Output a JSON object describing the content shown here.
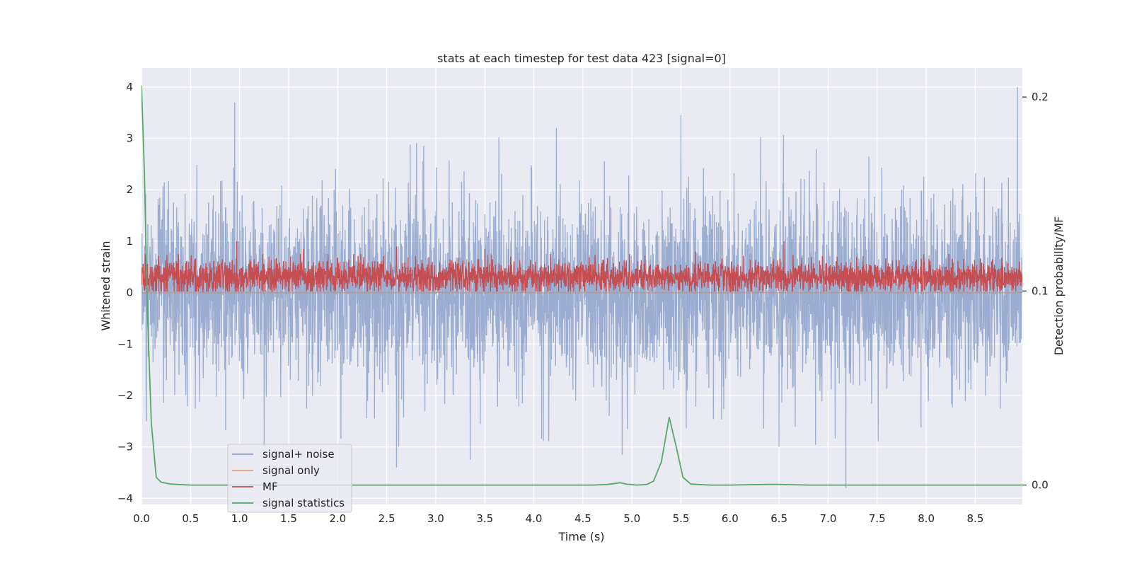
{
  "chart_data": {
    "type": "line",
    "title": "stats at each timestep for test data 423 [signal=0]",
    "xlabel": "Time (s)",
    "ylabel": "Whitened strain",
    "y2label": "Detection probability/MF",
    "xlim": [
      0,
      8.98
    ],
    "ylim": [
      -4.12,
      4.37
    ],
    "y2lim": [
      -0.01,
      0.215
    ],
    "xticks": [
      0.0,
      0.5,
      1.0,
      1.5,
      2.0,
      2.5,
      3.0,
      3.5,
      4.0,
      4.5,
      5.0,
      5.5,
      6.0,
      6.5,
      7.0,
      7.5,
      8.0,
      8.5
    ],
    "xtick_labels": [
      "0.0",
      "0.5",
      "1.0",
      "1.5",
      "2.0",
      "2.5",
      "3.0",
      "3.5",
      "4.0",
      "4.5",
      "5.0",
      "5.5",
      "6.0",
      "6.5",
      "7.0",
      "7.5",
      "8.0",
      "8.5"
    ],
    "yticks": [
      -4,
      -3,
      -2,
      -1,
      0,
      1,
      2,
      3,
      4
    ],
    "ytick_labels": [
      "−4",
      "−3",
      "−2",
      "−1",
      "0",
      "1",
      "2",
      "3",
      "4"
    ],
    "y2ticks": [
      0.0,
      0.1,
      0.2
    ],
    "y2tick_labels": [
      "0.0",
      "0.1",
      "0.2"
    ],
    "grid": true,
    "legend_position": "lower-left",
    "background": "#eaeaf2",
    "series": [
      {
        "name": "signal+ noise",
        "axis": "left",
        "color": "#4c72b0",
        "alpha": 0.5,
        "description_values": "dense whitened noise, roughly within -3.8 to 4.0, mostly between -2 and 2",
        "noise_std": 0.9,
        "spikes": [
          [
            0.95,
            3.7
          ],
          [
            4.1,
            0.0
          ],
          [
            7.18,
            -3.8
          ],
          [
            8.93,
            4.0
          ],
          [
            2.6,
            -3.4
          ],
          [
            3.35,
            -3.25
          ],
          [
            4.9,
            -3.15
          ],
          [
            1.25,
            -3.0
          ],
          [
            0.05,
            -2.5
          ],
          [
            5.5,
            3.45
          ]
        ]
      },
      {
        "name": "signal only",
        "axis": "left",
        "color": "#dd8452",
        "values_note": "zero everywhere (no signal)",
        "x": [
          0,
          8.98
        ],
        "y": [
          0,
          0
        ]
      },
      {
        "name": "MF",
        "axis": "left",
        "color": "#c44e52",
        "baseline": 0.3,
        "band": [
          0.0,
          0.75
        ],
        "peaks": [
          [
            0.97,
            1.0
          ],
          [
            2.6,
            0.9
          ],
          [
            3.5,
            0.85
          ],
          [
            6.55,
            1.0
          ],
          [
            1.65,
            0.85
          ],
          [
            5.65,
            0.8
          ]
        ]
      },
      {
        "name": "signal statistics",
        "axis": "right",
        "color": "#55a868",
        "x": [
          0.0,
          0.03,
          0.06,
          0.1,
          0.15,
          0.2,
          0.3,
          0.5,
          1.0,
          2.0,
          3.0,
          4.0,
          4.6,
          4.75,
          4.88,
          4.95,
          5.05,
          5.15,
          5.22,
          5.3,
          5.38,
          5.45,
          5.52,
          5.6,
          5.8,
          6.0,
          6.3,
          6.45,
          6.8,
          7.5,
          8.0,
          8.5,
          8.98
        ],
        "y": [
          0.206,
          0.16,
          0.09,
          0.032,
          0.004,
          0.0015,
          0.0005,
          0.0,
          0.0,
          0.0,
          0.0,
          0.0,
          0.0,
          0.0003,
          0.0012,
          0.0004,
          0.0,
          0.0003,
          0.002,
          0.012,
          0.035,
          0.02,
          0.004,
          0.0005,
          0.0,
          0.0,
          0.0003,
          0.0004,
          0.0,
          0.0,
          0.0,
          0.0,
          0.0
        ]
      }
    ]
  }
}
